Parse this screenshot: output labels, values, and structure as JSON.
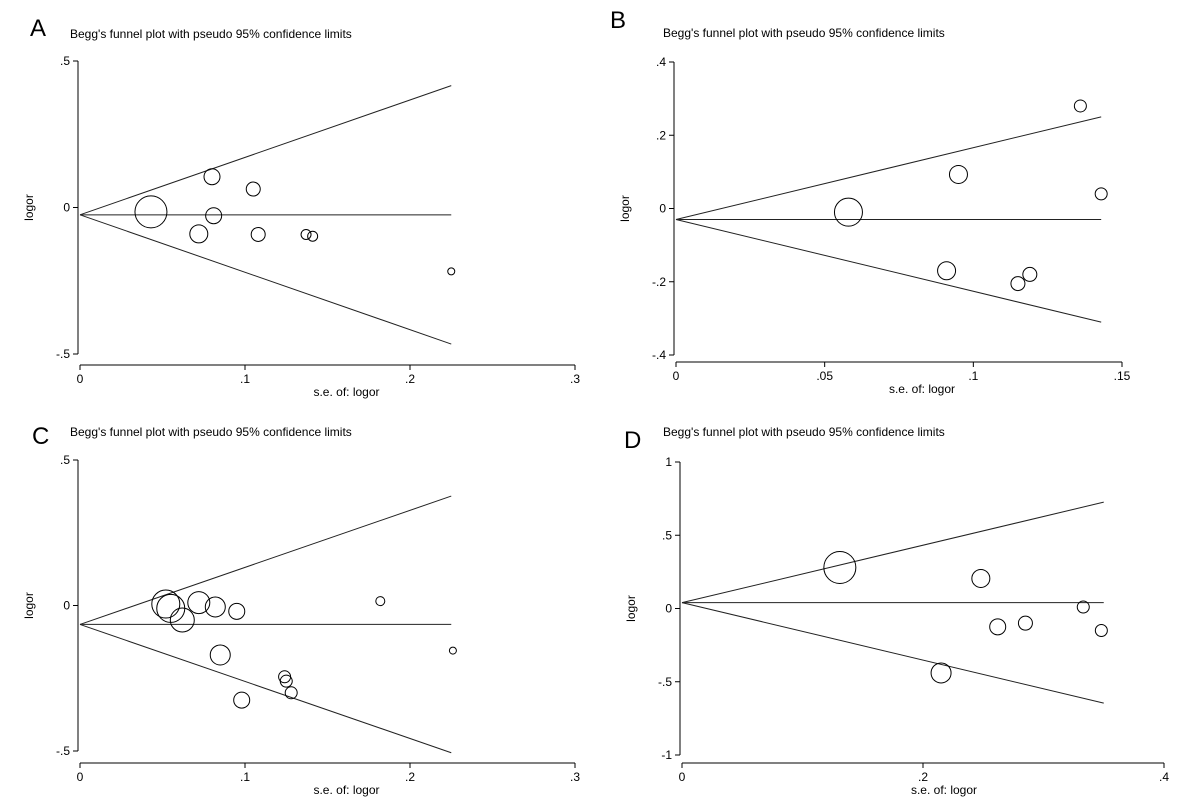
{
  "chart_data": [
    {
      "panel": "A",
      "type": "scatter",
      "title": "Begg's funnel plot with pseudo 95% confidence limits",
      "xlabel": "s.e. of: logor",
      "ylabel": "logor",
      "xlim": [
        0,
        0.3
      ],
      "ylim": [
        -0.5,
        0.5
      ],
      "xticks": [
        0,
        0.1,
        0.2,
        0.3
      ],
      "xtick_labels": [
        "0",
        ".1",
        ".2",
        ".3"
      ],
      "yticks": [
        -0.5,
        0,
        0.5
      ],
      "ytick_labels": [
        "-.5",
        "0",
        ".5"
      ],
      "pooled": -0.025,
      "se_max": 0.225,
      "points": [
        {
          "x": 0.043,
          "y": -0.015,
          "r": 16
        },
        {
          "x": 0.072,
          "y": -0.09,
          "r": 9
        },
        {
          "x": 0.08,
          "y": 0.105,
          "r": 8
        },
        {
          "x": 0.081,
          "y": -0.028,
          "r": 8
        },
        {
          "x": 0.105,
          "y": 0.063,
          "r": 7
        },
        {
          "x": 0.108,
          "y": -0.092,
          "r": 7
        },
        {
          "x": 0.137,
          "y": -0.092,
          "r": 5
        },
        {
          "x": 0.141,
          "y": -0.098,
          "r": 5
        },
        {
          "x": 0.225,
          "y": -0.218,
          "r": 3.5
        }
      ]
    },
    {
      "panel": "B",
      "type": "scatter",
      "title": "Begg's funnel plot with pseudo 95% confidence limits",
      "xlabel": "s.e. of: logor",
      "ylabel": "logor",
      "xlim": [
        0,
        0.15
      ],
      "ylim": [
        -0.4,
        0.4
      ],
      "xticks": [
        0,
        0.05,
        0.1,
        0.15
      ],
      "xtick_labels": [
        "0",
        ".05",
        ".1",
        ".15"
      ],
      "yticks": [
        -0.4,
        -0.2,
        0,
        0.2,
        0.4
      ],
      "ytick_labels": [
        "-.4",
        "-.2",
        "0",
        ".2",
        ".4"
      ],
      "pooled": -0.03,
      "se_max": 0.143,
      "points": [
        {
          "x": 0.058,
          "y": -0.01,
          "r": 14
        },
        {
          "x": 0.091,
          "y": -0.17,
          "r": 9
        },
        {
          "x": 0.095,
          "y": 0.093,
          "r": 9
        },
        {
          "x": 0.115,
          "y": -0.205,
          "r": 7
        },
        {
          "x": 0.119,
          "y": -0.18,
          "r": 7
        },
        {
          "x": 0.136,
          "y": 0.28,
          "r": 6
        },
        {
          "x": 0.143,
          "y": 0.04,
          "r": 6
        }
      ]
    },
    {
      "panel": "C",
      "type": "scatter",
      "title": "Begg's funnel plot with pseudo 95% confidence limits",
      "xlabel": "s.e. of: logor",
      "ylabel": "logor",
      "xlim": [
        0,
        0.3
      ],
      "ylim": [
        -0.5,
        0.5
      ],
      "xticks": [
        0,
        0.1,
        0.2,
        0.3
      ],
      "xtick_labels": [
        "0",
        ".1",
        ".2",
        ".3"
      ],
      "yticks": [
        -0.5,
        0,
        0.5
      ],
      "ytick_labels": [
        "-.5",
        "0",
        ".5"
      ],
      "pooled": -0.065,
      "se_max": 0.225,
      "points": [
        {
          "x": 0.052,
          "y": 0.005,
          "r": 14
        },
        {
          "x": 0.055,
          "y": -0.01,
          "r": 14
        },
        {
          "x": 0.062,
          "y": -0.05,
          "r": 12
        },
        {
          "x": 0.072,
          "y": 0.01,
          "r": 11
        },
        {
          "x": 0.082,
          "y": -0.005,
          "r": 10
        },
        {
          "x": 0.085,
          "y": -0.17,
          "r": 10
        },
        {
          "x": 0.095,
          "y": -0.02,
          "r": 8
        },
        {
          "x": 0.098,
          "y": -0.325,
          "r": 8
        },
        {
          "x": 0.124,
          "y": -0.245,
          "r": 6
        },
        {
          "x": 0.125,
          "y": -0.26,
          "r": 6
        },
        {
          "x": 0.128,
          "y": -0.3,
          "r": 6
        },
        {
          "x": 0.182,
          "y": 0.015,
          "r": 4.5
        },
        {
          "x": 0.226,
          "y": -0.155,
          "r": 3.5
        }
      ]
    },
    {
      "panel": "D",
      "type": "scatter",
      "title": "Begg's funnel plot with pseudo 95% confidence limits",
      "xlabel": "s.e. of: logor",
      "ylabel": "logor",
      "xlim": [
        0,
        0.4
      ],
      "ylim": [
        -1,
        1
      ],
      "xticks": [
        0,
        0.2,
        0.4
      ],
      "xtick_labels": [
        "0",
        ".2",
        ".4"
      ],
      "yticks": [
        -1,
        -0.5,
        0,
        0.5,
        1
      ],
      "ytick_labels": [
        "-1",
        "-.5",
        "0",
        ".5",
        "1"
      ],
      "pooled": 0.04,
      "se_max": 0.35,
      "points": [
        {
          "x": 0.131,
          "y": 0.28,
          "r": 16
        },
        {
          "x": 0.215,
          "y": -0.44,
          "r": 10
        },
        {
          "x": 0.248,
          "y": 0.205,
          "r": 9
        },
        {
          "x": 0.262,
          "y": -0.125,
          "r": 8
        },
        {
          "x": 0.285,
          "y": -0.1,
          "r": 7
        },
        {
          "x": 0.333,
          "y": 0.01,
          "r": 6
        },
        {
          "x": 0.348,
          "y": -0.15,
          "r": 6
        }
      ]
    }
  ]
}
